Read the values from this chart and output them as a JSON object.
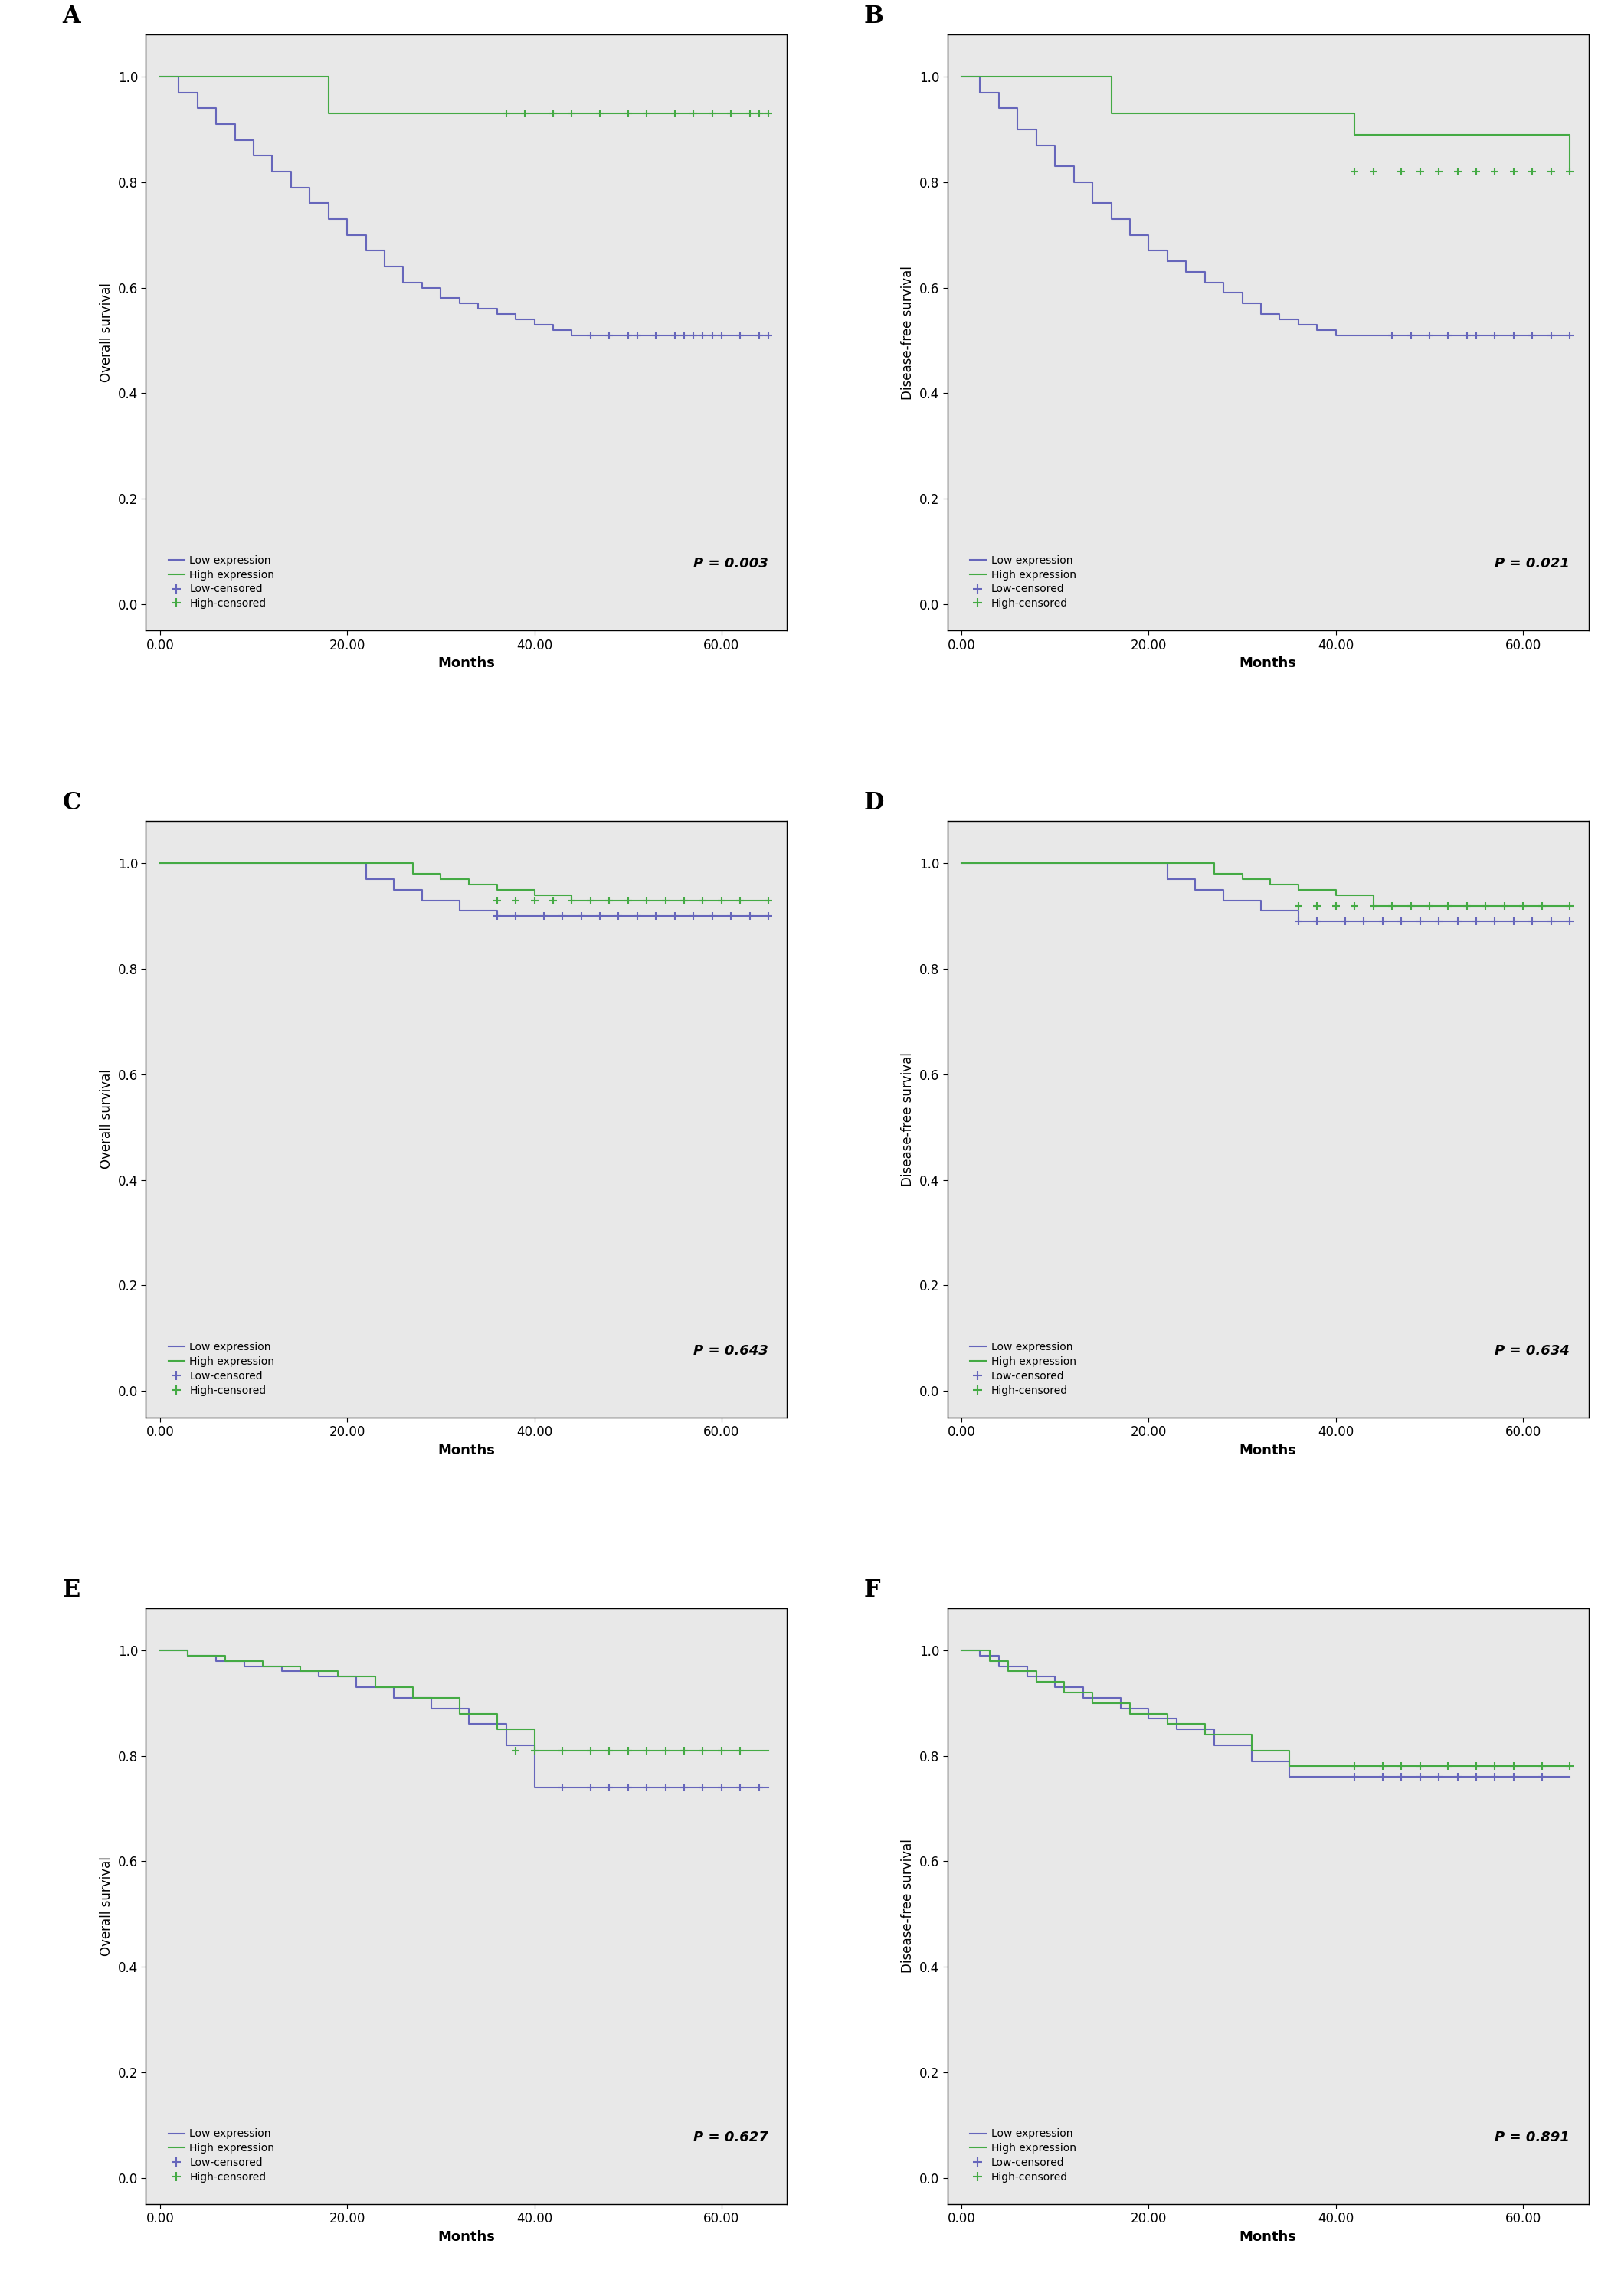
{
  "panels": [
    {
      "label": "A",
      "ylabel": "Overall survival",
      "pvalue": "P = 0.003",
      "low": {
        "times": [
          0,
          2,
          4,
          6,
          8,
          10,
          12,
          14,
          16,
          18,
          20,
          22,
          24,
          26,
          28,
          30,
          32,
          34,
          36,
          38,
          40,
          42,
          44,
          65
        ],
        "surv": [
          1.0,
          0.97,
          0.94,
          0.91,
          0.88,
          0.85,
          0.82,
          0.79,
          0.76,
          0.73,
          0.7,
          0.67,
          0.64,
          0.61,
          0.6,
          0.58,
          0.57,
          0.56,
          0.55,
          0.54,
          0.53,
          0.52,
          0.51,
          0.51
        ],
        "censored_times": [
          46,
          48,
          50,
          51,
          53,
          55,
          56,
          57,
          58,
          59,
          60,
          62,
          64,
          65
        ],
        "censored_surv": [
          0.51,
          0.51,
          0.51,
          0.51,
          0.51,
          0.51,
          0.51,
          0.51,
          0.51,
          0.51,
          0.51,
          0.51,
          0.51,
          0.51
        ]
      },
      "high": {
        "times": [
          0,
          4,
          18,
          65
        ],
        "surv": [
          1.0,
          1.0,
          0.93,
          0.93
        ],
        "censored_times": [
          37,
          39,
          42,
          44,
          47,
          50,
          52,
          55,
          57,
          59,
          61,
          63,
          64,
          65
        ],
        "censored_surv": [
          0.93,
          0.93,
          0.93,
          0.93,
          0.93,
          0.93,
          0.93,
          0.93,
          0.93,
          0.93,
          0.93,
          0.93,
          0.93,
          0.93
        ]
      }
    },
    {
      "label": "B",
      "ylabel": "Disease-free survival",
      "pvalue": "P = 0.021",
      "low": {
        "times": [
          0,
          2,
          4,
          6,
          8,
          10,
          12,
          14,
          16,
          18,
          20,
          22,
          24,
          26,
          28,
          30,
          32,
          34,
          36,
          38,
          40,
          42,
          65
        ],
        "surv": [
          1.0,
          0.97,
          0.94,
          0.9,
          0.87,
          0.83,
          0.8,
          0.76,
          0.73,
          0.7,
          0.67,
          0.65,
          0.63,
          0.61,
          0.59,
          0.57,
          0.55,
          0.54,
          0.53,
          0.52,
          0.51,
          0.51,
          0.51
        ],
        "censored_times": [
          46,
          48,
          50,
          52,
          54,
          55,
          57,
          59,
          61,
          63,
          65
        ],
        "censored_surv": [
          0.51,
          0.51,
          0.51,
          0.51,
          0.51,
          0.51,
          0.51,
          0.51,
          0.51,
          0.51,
          0.51
        ]
      },
      "high": {
        "times": [
          0,
          4,
          16,
          37,
          42,
          65
        ],
        "surv": [
          1.0,
          1.0,
          0.93,
          0.93,
          0.89,
          0.82
        ],
        "censored_times": [
          42,
          44,
          47,
          49,
          51,
          53,
          55,
          57,
          59,
          61,
          63,
          65
        ],
        "censored_surv": [
          0.82,
          0.82,
          0.82,
          0.82,
          0.82,
          0.82,
          0.82,
          0.82,
          0.82,
          0.82,
          0.82,
          0.82
        ]
      }
    },
    {
      "label": "C",
      "ylabel": "Overall survival",
      "pvalue": "P = 0.643",
      "low": {
        "times": [
          0,
          20,
          22,
          25,
          28,
          32,
          36,
          65
        ],
        "surv": [
          1.0,
          1.0,
          0.97,
          0.95,
          0.93,
          0.91,
          0.9,
          0.9
        ],
        "censored_times": [
          36,
          38,
          41,
          43,
          45,
          47,
          49,
          51,
          53,
          55,
          57,
          59,
          61,
          63,
          65
        ],
        "censored_surv": [
          0.9,
          0.9,
          0.9,
          0.9,
          0.9,
          0.9,
          0.9,
          0.9,
          0.9,
          0.9,
          0.9,
          0.9,
          0.9,
          0.9,
          0.9
        ]
      },
      "high": {
        "times": [
          0,
          25,
          27,
          30,
          33,
          36,
          40,
          44,
          65
        ],
        "surv": [
          1.0,
          1.0,
          0.98,
          0.97,
          0.96,
          0.95,
          0.94,
          0.93,
          0.93
        ],
        "censored_times": [
          36,
          38,
          40,
          42,
          44,
          46,
          48,
          50,
          52,
          54,
          56,
          58,
          60,
          62,
          65
        ],
        "censored_surv": [
          0.93,
          0.93,
          0.93,
          0.93,
          0.93,
          0.93,
          0.93,
          0.93,
          0.93,
          0.93,
          0.93,
          0.93,
          0.93,
          0.93,
          0.93
        ]
      }
    },
    {
      "label": "D",
      "ylabel": "Disease-free survival",
      "pvalue": "P = 0.634",
      "low": {
        "times": [
          0,
          20,
          22,
          25,
          28,
          32,
          36,
          65
        ],
        "surv": [
          1.0,
          1.0,
          0.97,
          0.95,
          0.93,
          0.91,
          0.89,
          0.89
        ],
        "censored_times": [
          36,
          38,
          41,
          43,
          45,
          47,
          49,
          51,
          53,
          55,
          57,
          59,
          61,
          63,
          65
        ],
        "censored_surv": [
          0.89,
          0.89,
          0.89,
          0.89,
          0.89,
          0.89,
          0.89,
          0.89,
          0.89,
          0.89,
          0.89,
          0.89,
          0.89,
          0.89,
          0.89
        ]
      },
      "high": {
        "times": [
          0,
          25,
          27,
          30,
          33,
          36,
          40,
          44,
          65
        ],
        "surv": [
          1.0,
          1.0,
          0.98,
          0.97,
          0.96,
          0.95,
          0.94,
          0.92,
          0.92
        ],
        "censored_times": [
          36,
          38,
          40,
          42,
          44,
          46,
          48,
          50,
          52,
          54,
          56,
          58,
          60,
          62,
          65
        ],
        "censored_surv": [
          0.92,
          0.92,
          0.92,
          0.92,
          0.92,
          0.92,
          0.92,
          0.92,
          0.92,
          0.92,
          0.92,
          0.92,
          0.92,
          0.92,
          0.92
        ]
      }
    },
    {
      "label": "E",
      "ylabel": "Overall survival",
      "pvalue": "P = 0.627",
      "low": {
        "times": [
          0,
          3,
          6,
          9,
          13,
          17,
          21,
          25,
          29,
          33,
          37,
          40,
          65
        ],
        "surv": [
          1.0,
          0.99,
          0.98,
          0.97,
          0.96,
          0.95,
          0.93,
          0.91,
          0.89,
          0.86,
          0.82,
          0.74,
          0.74
        ],
        "censored_times": [
          43,
          46,
          48,
          50,
          52,
          54,
          56,
          58,
          60,
          62,
          64
        ],
        "censored_surv": [
          0.74,
          0.74,
          0.74,
          0.74,
          0.74,
          0.74,
          0.74,
          0.74,
          0.74,
          0.74,
          0.74
        ]
      },
      "high": {
        "times": [
          0,
          3,
          7,
          11,
          15,
          19,
          23,
          27,
          32,
          36,
          40,
          65
        ],
        "surv": [
          1.0,
          0.99,
          0.98,
          0.97,
          0.96,
          0.95,
          0.93,
          0.91,
          0.88,
          0.85,
          0.81,
          0.81
        ],
        "censored_times": [
          38,
          40,
          43,
          46,
          48,
          50,
          52,
          54,
          56,
          58,
          60,
          62
        ],
        "censored_surv": [
          0.81,
          0.81,
          0.81,
          0.81,
          0.81,
          0.81,
          0.81,
          0.81,
          0.81,
          0.81,
          0.81,
          0.81
        ]
      }
    },
    {
      "label": "F",
      "ylabel": "Disease-free survival",
      "pvalue": "P = 0.891",
      "low": {
        "times": [
          0,
          2,
          4,
          7,
          10,
          13,
          17,
          20,
          23,
          27,
          31,
          35,
          65
        ],
        "surv": [
          1.0,
          0.99,
          0.97,
          0.95,
          0.93,
          0.91,
          0.89,
          0.87,
          0.85,
          0.82,
          0.79,
          0.76,
          0.76
        ],
        "censored_times": [
          42,
          45,
          47,
          49,
          51,
          53,
          55,
          57,
          59,
          62
        ],
        "censored_surv": [
          0.76,
          0.76,
          0.76,
          0.76,
          0.76,
          0.76,
          0.76,
          0.76,
          0.76,
          0.76
        ]
      },
      "high": {
        "times": [
          0,
          3,
          5,
          8,
          11,
          14,
          18,
          22,
          26,
          31,
          35,
          65
        ],
        "surv": [
          1.0,
          0.98,
          0.96,
          0.94,
          0.92,
          0.9,
          0.88,
          0.86,
          0.84,
          0.81,
          0.78,
          0.78
        ],
        "censored_times": [
          42,
          45,
          47,
          49,
          52,
          55,
          57,
          59,
          62,
          65
        ],
        "censored_surv": [
          0.78,
          0.78,
          0.78,
          0.78,
          0.78,
          0.78,
          0.78,
          0.78,
          0.78,
          0.78
        ]
      }
    }
  ],
  "low_color": "#6666BB",
  "high_color": "#44AA44",
  "bg_color": "#E8E8E8",
  "xlabel": "Months",
  "xticks_A": [
    0.0,
    20.0,
    40.0,
    60.0
  ],
  "xtick_labels_A": [
    "0.00",
    "20.00",
    "40.00",
    "60.00"
  ],
  "xticks_CD": [
    0.0,
    20.0,
    40.0,
    60.0
  ],
  "xtick_labels_CD": [
    "0.00",
    "20.00",
    "40.00",
    "60.00"
  ],
  "yticks": [
    0.0,
    0.2,
    0.4,
    0.6,
    0.8,
    1.0
  ],
  "xlim": [
    -1.5,
    67
  ],
  "ylim": [
    -0.05,
    1.08
  ]
}
